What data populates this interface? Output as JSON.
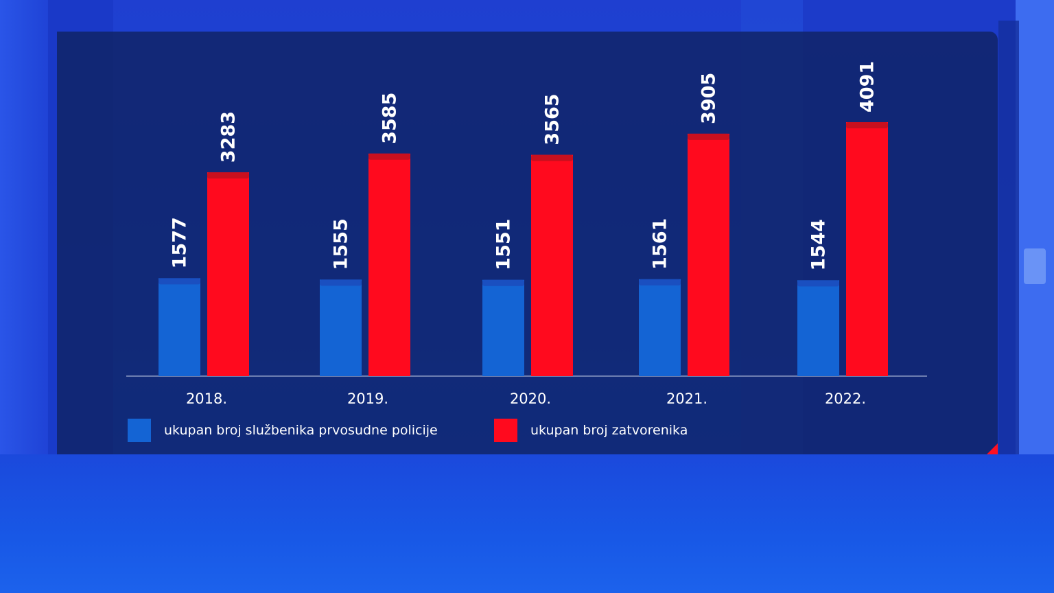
{
  "chart_data": {
    "type": "bar",
    "categories": [
      "2018.",
      "2019.",
      "2020.",
      "2021.",
      "2022."
    ],
    "series": [
      {
        "name": "ukupan broj službenika prvosudne policije",
        "values": [
          1577,
          1555,
          1551,
          1561,
          1544
        ],
        "color": "#1464d4"
      },
      {
        "name": "ukupan broj zatvorenika",
        "values": [
          3283,
          3585,
          3565,
          3905,
          4091
        ],
        "color": "#ff0a1e"
      }
    ],
    "value_labels": {
      "s0": [
        "1577",
        "1555",
        "1551",
        "1561",
        "1544"
      ],
      "s1": [
        "3283",
        "3585",
        "3565",
        "3905",
        "4091"
      ]
    },
    "ylim": [
      0,
      4091
    ],
    "grid": false,
    "legend_position": "bottom-left"
  },
  "legend": {
    "item1": "ukupan broj službenika prvosudne policije",
    "item2": "ukupan broj zatvorenika"
  },
  "colors": {
    "blue_bar": "#1464d4",
    "blue_cap": "#1a4fc0",
    "red_bar": "#ff0a1e",
    "red_cap": "#c8101e",
    "panel": "#102468"
  }
}
